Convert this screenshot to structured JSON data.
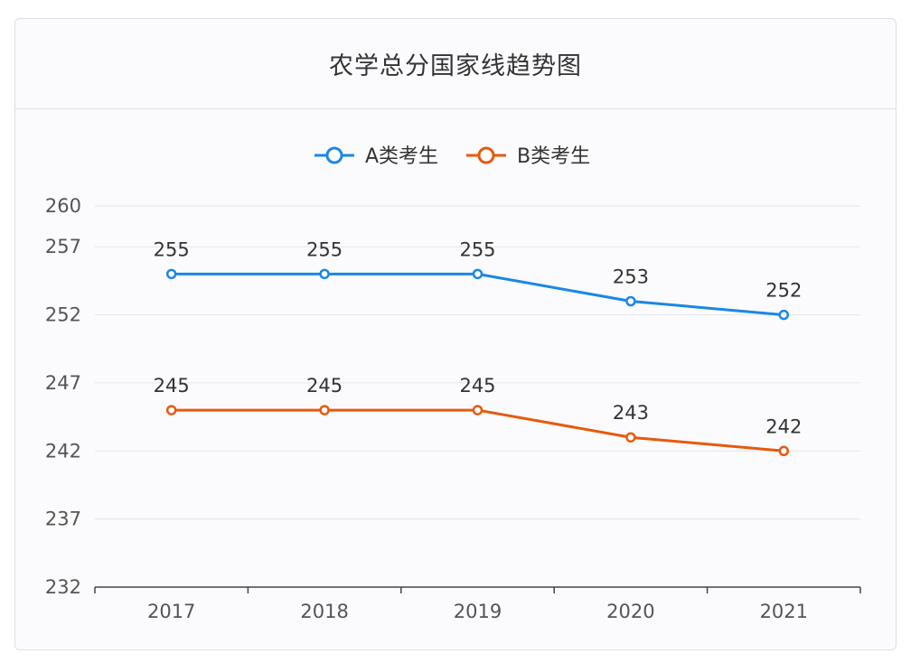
{
  "chart_data": {
    "type": "line",
    "title": "农学总分国家线趋势图",
    "categories": [
      "2017",
      "2018",
      "2019",
      "2020",
      "2021"
    ],
    "yticks": [
      232,
      237,
      242,
      247,
      252,
      257,
      260
    ],
    "ylim": [
      232,
      260
    ],
    "grid": true,
    "legend_position": "top-center",
    "series": [
      {
        "name": "A类考生",
        "color": "#1a87e6",
        "values": [
          255,
          255,
          255,
          253,
          252
        ]
      },
      {
        "name": "B类考生",
        "color": "#e8590c",
        "values": [
          245,
          245,
          245,
          243,
          242
        ]
      }
    ]
  }
}
